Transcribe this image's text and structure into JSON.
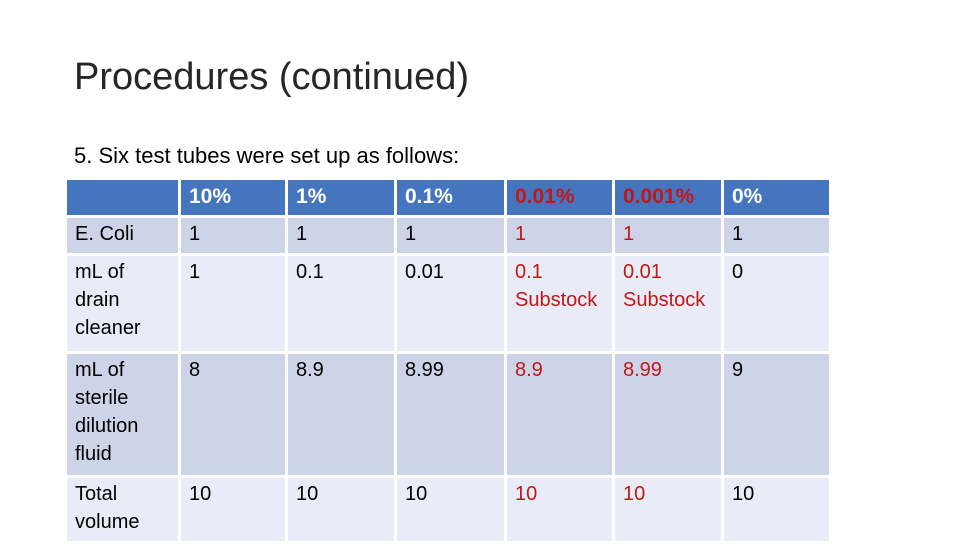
{
  "slide": {
    "title": "Procedures (continued)",
    "subtitle": "5. Six test tubes were set up as follows:"
  },
  "colors": {
    "header_bg": "#4575BE",
    "header_text": "#FFFFFF",
    "band_dark": "#CDD4E8",
    "band_light": "#E9ECF6",
    "red": "#C21717",
    "title_text": "#262626",
    "body_text": "#000000"
  },
  "table": {
    "columns": [
      {
        "label": "",
        "color": "white"
      },
      {
        "label": "10%",
        "color": "white"
      },
      {
        "label": "1%",
        "color": "white"
      },
      {
        "label": "0.1%",
        "color": "white"
      },
      {
        "label": "0.01%",
        "color": "red"
      },
      {
        "label": "0.001%",
        "color": "red"
      },
      {
        "label": "0%",
        "color": "white"
      }
    ],
    "rows": [
      {
        "label": "E. Coli",
        "cells": [
          {
            "text": "1"
          },
          {
            "text": "1"
          },
          {
            "text": "1"
          },
          {
            "text": "1",
            "red": true
          },
          {
            "text": "1",
            "red": true
          },
          {
            "text": "1"
          }
        ]
      },
      {
        "label": "mL of drain cleaner",
        "cells": [
          {
            "text": "1"
          },
          {
            "text": "0.1"
          },
          {
            "text": "0.01"
          },
          {
            "text": "0.1 Substock",
            "red": true
          },
          {
            "text": "0.01 Substock",
            "red": true
          },
          {
            "text": "0"
          }
        ]
      },
      {
        "label": "mL of sterile dilution fluid",
        "cells": [
          {
            "text": "8"
          },
          {
            "text": "8.9"
          },
          {
            "text": "8.99"
          },
          {
            "text": "8.9",
            "red": true
          },
          {
            "text": "8.99",
            "red": true
          },
          {
            "text": "9"
          }
        ]
      },
      {
        "label": "Total volume",
        "cells": [
          {
            "text": "10"
          },
          {
            "text": "10"
          },
          {
            "text": "10"
          },
          {
            "text": "10",
            "red": true
          },
          {
            "text": "10",
            "red": true
          },
          {
            "text": "10"
          }
        ]
      }
    ]
  }
}
